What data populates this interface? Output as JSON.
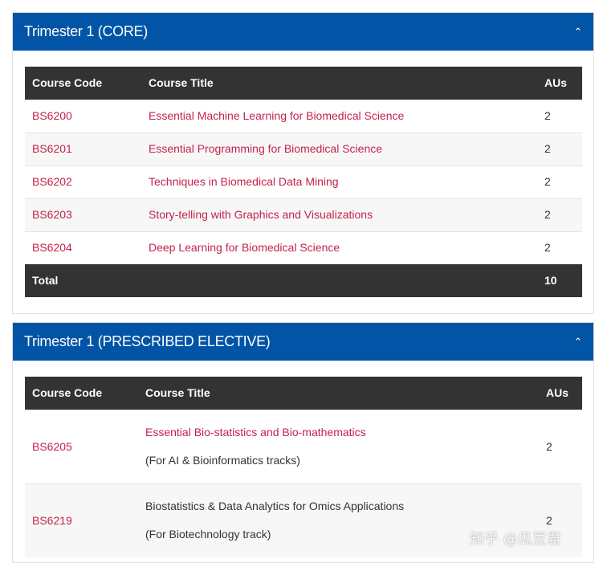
{
  "panels": [
    {
      "title": "Trimester 1 (CORE)",
      "headers": [
        "Course Code",
        "Course Title",
        "AUs"
      ],
      "rows": [
        {
          "code": "BS6200",
          "title": "Essential Machine Learning for Biomedical Science",
          "aus": "2"
        },
        {
          "code": "BS6201",
          "title": "Essential Programming for Biomedical Science",
          "aus": "2"
        },
        {
          "code": "BS6202",
          "title": "Techniques in Biomedical Data Mining",
          "aus": "2"
        },
        {
          "code": "BS6203",
          "title": "Story-telling with Graphics and Visualizations",
          "aus": "2"
        },
        {
          "code": "BS6204",
          "title": "Deep Learning for Biomedical Science",
          "aus": "2"
        }
      ],
      "total_label": "Total",
      "total_value": "10"
    },
    {
      "title": "Trimester 1 (PRESCRIBED ELECTIVE)",
      "headers": [
        "Course Code",
        "Course Title",
        "AUs"
      ],
      "rows": [
        {
          "code": "BS6205",
          "title": "Essential Bio-statistics and Bio-mathematics",
          "note": "(For AI & Bioinformatics tracks)",
          "aus": "2"
        },
        {
          "code": "BS6219",
          "title": "Biostatistics & Data Analytics for Omics Applications",
          "note": "(For Biotechnology track)",
          "aus": "2"
        }
      ]
    }
  ],
  "watermark": "知乎 @瓜豆君",
  "colors": {
    "header_blue": "#0254a6",
    "table_header": "#333333",
    "link": "#c4224b"
  }
}
